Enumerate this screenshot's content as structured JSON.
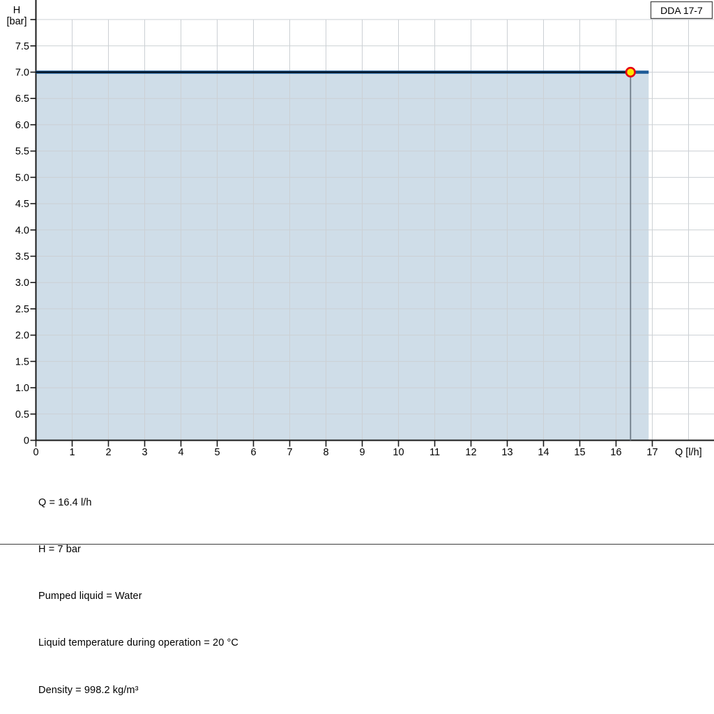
{
  "legend": {
    "label": "DDA 17-7"
  },
  "chart": {
    "y_axis": {
      "title_top": "H",
      "title_bottom": "[bar]",
      "tick_values": [
        0,
        0.5,
        1,
        1.5,
        2,
        2.5,
        3,
        3.5,
        4,
        4.5,
        5,
        5.5,
        6,
        6.5,
        7,
        7.5,
        8
      ],
      "tick_labels": [
        "0",
        "0.5",
        "1.0",
        "1.5",
        "2.0",
        "2.5",
        "3.0",
        "3.5",
        "4.0",
        "4.5",
        "5.0",
        "5.5",
        "6.0",
        "6.5",
        "7.0",
        "7.5",
        ""
      ]
    },
    "x_axis": {
      "title": "Q [l/h]",
      "tick_values": [
        0,
        1,
        2,
        3,
        4,
        5,
        6,
        7,
        8,
        9,
        10,
        11,
        12,
        13,
        14,
        15,
        16,
        17
      ],
      "tick_labels": [
        "0",
        "1",
        "2",
        "3",
        "4",
        "5",
        "6",
        "7",
        "8",
        "9",
        "10",
        "11",
        "12",
        "13",
        "14",
        "15",
        "16",
        "17"
      ]
    },
    "x_grid_values": [
      1,
      2,
      3,
      4,
      5,
      6,
      7,
      8,
      9,
      10,
      11,
      12,
      13,
      14,
      15,
      16,
      17,
      18
    ],
    "y_grid_values": [
      0.5,
      1,
      1.5,
      2,
      2.5,
      3,
      3.5,
      4,
      4.5,
      5,
      5.5,
      6,
      6.5,
      7,
      7.5,
      8
    ],
    "colors": {
      "axis": "#1a1a1a",
      "grid": "#ccd0d4",
      "area_fill": "#cfdde8",
      "curve": "#1d5a96",
      "operating_line": "#000000",
      "drop_line": "#6f7c88",
      "duty_marker_fill": "#ffe600",
      "duty_marker_stroke": "#e60012",
      "legend_border": "#4a4a4a",
      "legend_fill": "#ffffff"
    }
  },
  "chart_data": {
    "type": "line",
    "title": "",
    "xlabel": "Q [l/h]",
    "ylabel": "H [bar]",
    "xlim": [
      0,
      18.7
    ],
    "ylim": [
      0,
      8.37
    ],
    "grid": true,
    "legend_position": "top-right",
    "series": [
      {
        "name": "DDA 17-7",
        "color": "#1d5a96",
        "x": [
          0,
          16.9
        ],
        "y": [
          7,
          7
        ]
      },
      {
        "name": "operating-line",
        "color": "#000000",
        "x": [
          0,
          16.4
        ],
        "y": [
          7,
          7
        ]
      }
    ],
    "area": {
      "x_from": 0,
      "x_to": 16.9,
      "y_top": 7,
      "y_bottom": 0
    },
    "duty_point": {
      "x": 16.4,
      "y": 7
    },
    "duty_drop_line": {
      "x": 16.4,
      "y_from": 7,
      "y_to": 0
    }
  },
  "info": {
    "lines": [
      "Q = 16.4 l/h",
      "H = 7 bar",
      "Pumped liquid = Water",
      "Liquid temperature during operation = 20 °C",
      "Density = 998.2 kg/m³"
    ]
  }
}
